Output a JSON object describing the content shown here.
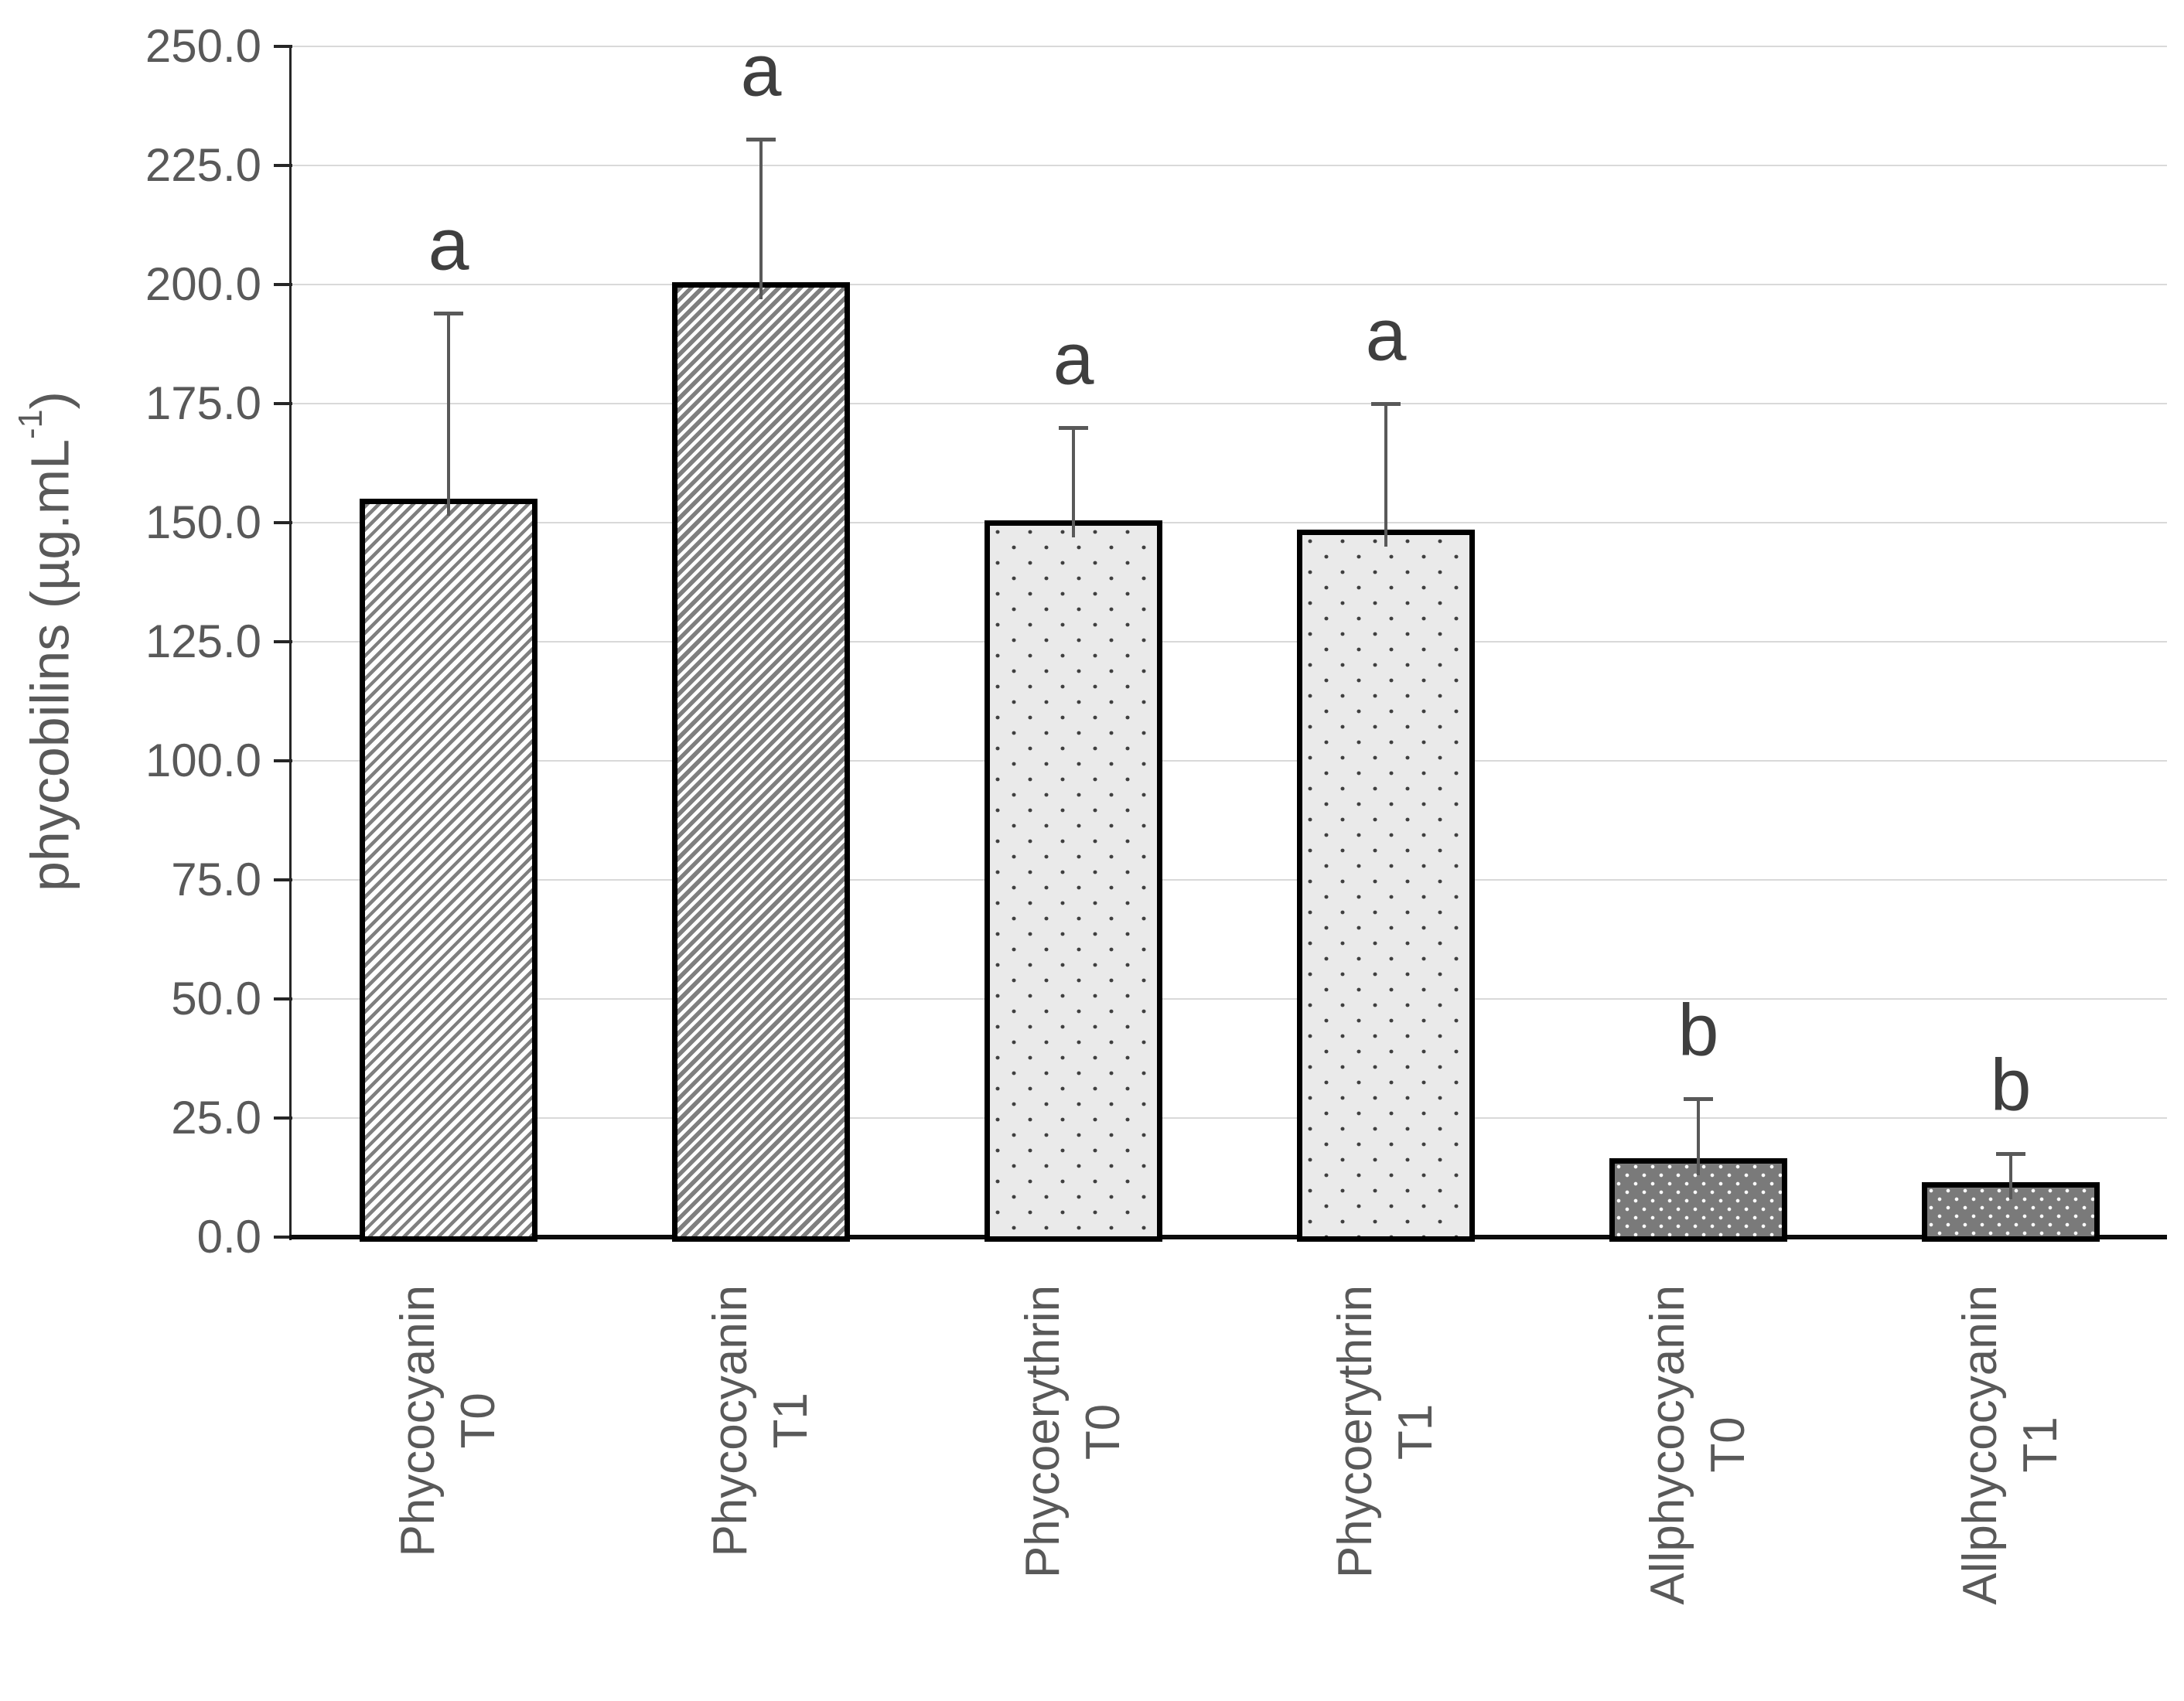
{
  "chart_data": {
    "type": "bar",
    "title": "",
    "ylabel": {
      "prefix": "phycobilins (µg.mL",
      "sup": "-1",
      "suffix": ")"
    },
    "ylim": [
      0,
      250
    ],
    "ytick_step": 25,
    "ytick_labels": [
      "0.0",
      "25.0",
      "50.0",
      "75.0",
      "100.0",
      "125.0",
      "150.0",
      "175.0",
      "200.0",
      "225.0",
      "250.0"
    ],
    "grid": true,
    "legend": "none",
    "categories": [
      {
        "line1": "Phycocyanin",
        "line2": "T0"
      },
      {
        "line1": "Phycocyanin",
        "line2": "T1"
      },
      {
        "line1": "Phycoerythrin",
        "line2": "T0"
      },
      {
        "line1": "Phycoerythrin",
        "line2": "T1"
      },
      {
        "line1": "Allphycocyanin",
        "line2": "T0"
      },
      {
        "line1": "Allphycocyanin",
        "line2": "T1"
      }
    ],
    "values": [
      155,
      200.5,
      150.5,
      148.5,
      16.5,
      11.5
    ],
    "error_up": [
      39,
      30,
      19.5,
      26.5,
      12.5,
      6
    ],
    "sig_letters": [
      "a",
      "a",
      "a",
      "a",
      "b",
      "b"
    ],
    "patterns": [
      "hatch-light",
      "hatch-dense",
      "dots-light",
      "dots-light",
      "dots-dark",
      "dots-dark"
    ]
  },
  "colors": {
    "background": "#ffffff",
    "grid": "#d9d9d9",
    "axis": "#262626",
    "baseline": "#0d0d0d",
    "text": "#595959",
    "sig_letter": "#3f3f3f",
    "bar_border": "#000000",
    "hatch_stripe": "#7f7f7f",
    "dots_light_bg": "#eaeaea",
    "dots_light_dot": "#3f3f3f",
    "dots_dark_bg": "#7a7a7a",
    "dots_dark_dot": "#ffffff",
    "error_bar": "#595959"
  }
}
